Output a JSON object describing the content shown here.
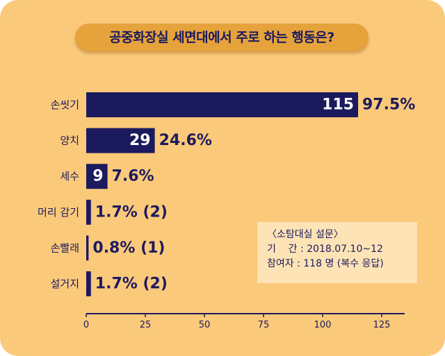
{
  "chart_data": {
    "type": "bar",
    "orientation": "horizontal",
    "title": "공중화장실 세면대에서 주로 하는 행동은?",
    "categories": [
      "손씻기",
      "양치",
      "세수",
      "머리 감기",
      "손빨래",
      "설거지"
    ],
    "values": [
      115,
      29,
      9,
      2,
      1,
      2
    ],
    "value_labels": [
      "115",
      "29",
      "9",
      "",
      "",
      ""
    ],
    "percent_labels": [
      "97.5%",
      "24.6%",
      "7.6%",
      "1.7% (2)",
      "0.8% (1)",
      "1.7% (2)"
    ],
    "xlim": [
      0,
      135
    ],
    "xticks": [
      0,
      25,
      50,
      75,
      100,
      125
    ],
    "xlabel": "",
    "ylabel": "",
    "grid": false,
    "legend": "none"
  },
  "survey_note": {
    "heading": "〈소탐대실 설문〉",
    "period_label": "기    간",
    "period_value": "2018.07.10~12",
    "respondents_label": "참여자",
    "respondents_value": "118 명 (복수 응답)"
  },
  "colors": {
    "background": "#fbc97a",
    "title_pill": "#e6a33c",
    "bar": "#1c1a5e",
    "text": "#1c1a5e",
    "note_box": "#fde3b6"
  }
}
